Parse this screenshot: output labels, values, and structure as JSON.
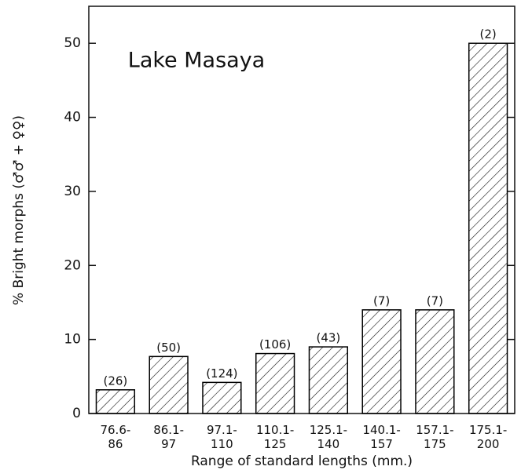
{
  "chart_data": {
    "type": "bar",
    "title": "Lake Masaya",
    "x_label": "Range of standard lengths (mm.)",
    "y_label": "% Bright morphs (♂♂ + ♀♀)",
    "categories": [
      "76.6-\n86",
      "86.1-\n97",
      "97.1-\n110",
      "110.1-\n125",
      "125.1-\n140",
      "140.1-\n157",
      "157.1-\n175",
      "175.1-\n200"
    ],
    "values": [
      3.2,
      7.7,
      4.2,
      8.1,
      9.0,
      14.0,
      14.0,
      50.0
    ],
    "bar_labels": [
      "(26)",
      "(50)",
      "(124)",
      "(106)",
      "(43)",
      "(7)",
      "(7)",
      "(2)"
    ],
    "color": "#000000",
    "ylim": [
      0,
      55
    ],
    "yticks": [
      0,
      10,
      20,
      30,
      40,
      50
    ],
    "grid": false
  }
}
